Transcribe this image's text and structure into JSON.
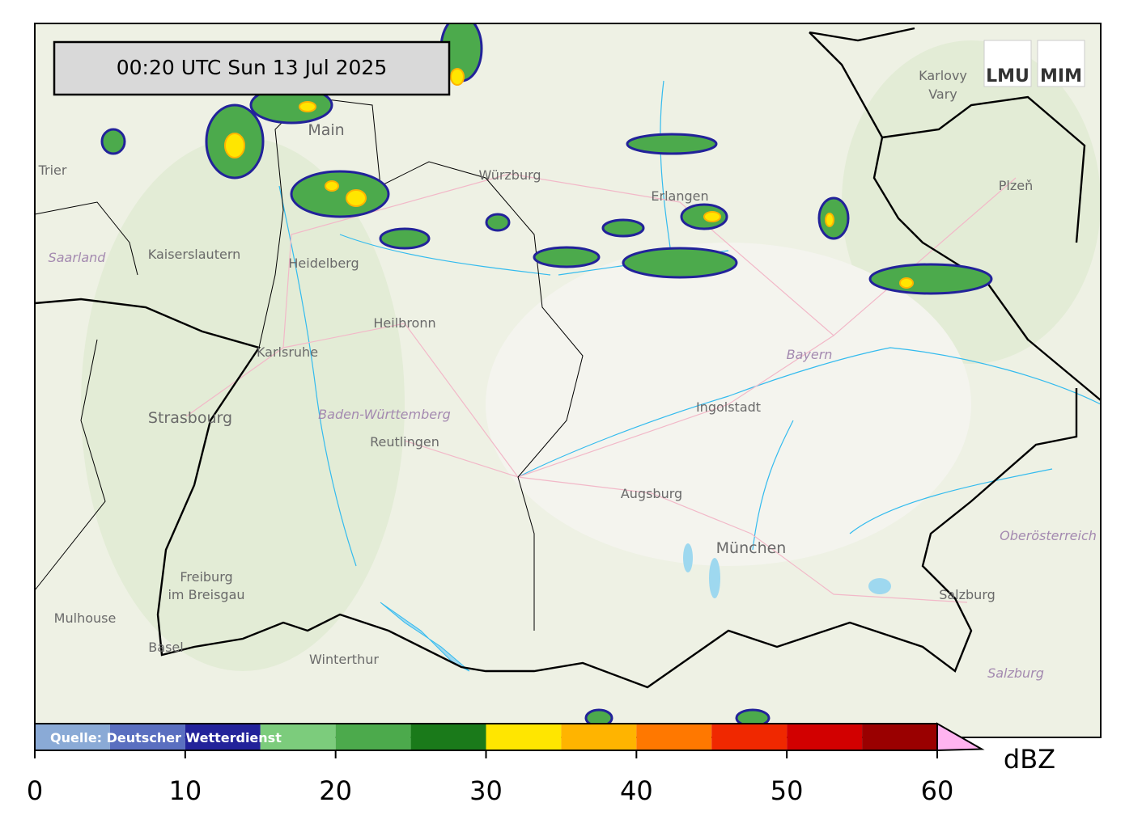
{
  "timestamp": "00:20 UTC  Sun 13 Jul 2025",
  "logos": [
    "LMU",
    "MIM"
  ],
  "places": [
    "Karlovy",
    "Vary",
    "Plzeň",
    "Main",
    "Trier",
    "Würzburg",
    "Erlangen",
    "Kaiserslautern",
    "Saarland",
    "Heidelberg",
    "Heilbronn",
    "Karlsruhe",
    "Bayern",
    "Strasbourg",
    "Baden-Württemberg",
    "Ingolstadt",
    "Reutlingen",
    "Augsburg",
    "München",
    "Oberösterreich",
    "Freiburg",
    "im Breisgau",
    "Mulhouse",
    "Basel",
    "Winterthur",
    "Salzburg",
    "Salzburg"
  ],
  "colorbar": {
    "unit": "dBZ",
    "source": "Quelle: Deutscher Wetterdienst",
    "lim": [
      0,
      60
    ],
    "bounds": [
      0,
      5,
      10,
      15,
      20,
      25,
      30,
      35,
      40,
      45,
      50,
      55,
      60
    ],
    "colors": [
      "#8aaad6",
      "#5a6fc0",
      "#22229a",
      "#7ccc7c",
      "#4caa4c",
      "#1a7a1a",
      "#ffe600",
      "#ffb400",
      "#ff7800",
      "#f02800",
      "#d20000",
      "#9a0000"
    ],
    "extend_color": "#ffb4f0",
    "ticks": [
      0,
      10,
      20,
      30,
      40,
      50,
      60
    ]
  }
}
